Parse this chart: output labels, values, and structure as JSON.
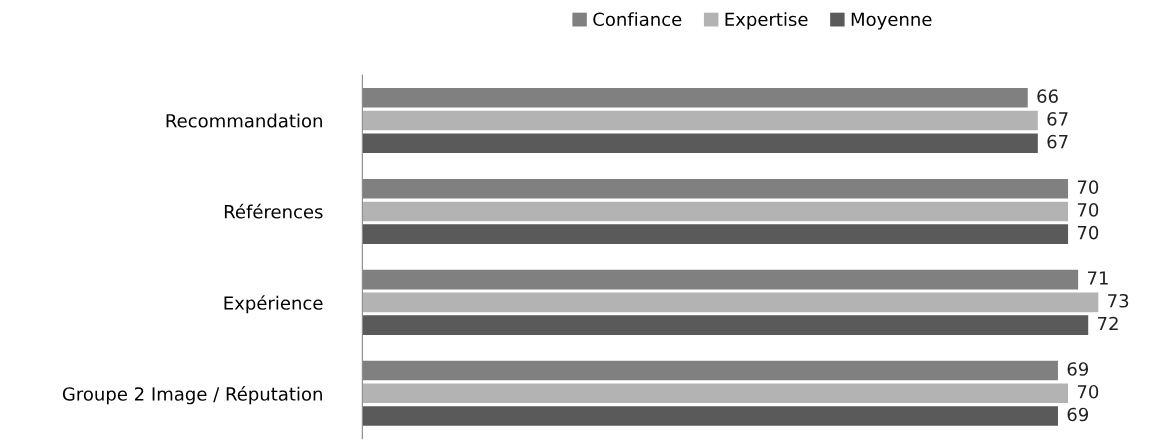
{
  "chart_data": {
    "type": "bar",
    "orientation": "horizontal",
    "categories": [
      "Recommandation",
      "Références",
      "Expérience",
      "Groupe 2 Image / Réputation"
    ],
    "series": [
      {
        "name": "Confiance",
        "color": "#808080",
        "values": [
          66,
          70,
          71,
          69
        ]
      },
      {
        "name": "Expertise",
        "color": "#b3b3b3",
        "values": [
          67,
          70,
          73,
          70
        ]
      },
      {
        "name": "Moyenne",
        "color": "#5a5a5a",
        "values": [
          67,
          70,
          72,
          69
        ]
      }
    ],
    "tick_labels": "y",
    "data_labels": true,
    "legend": "top",
    "grid": false
  }
}
